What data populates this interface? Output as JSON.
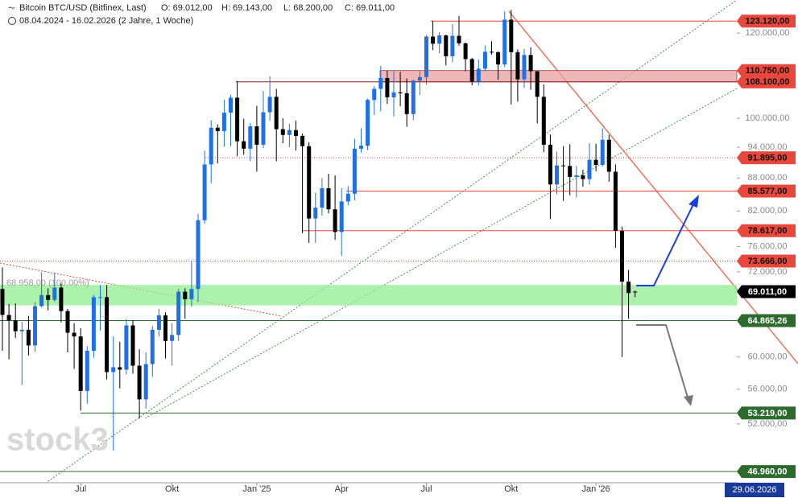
{
  "chart_data": {
    "type": "candlestick",
    "title": "Bitcoin BTC/USD (Bitfinex, Last)",
    "ohlc_info": [
      "O: 69.012,00",
      "H: 69.143,00",
      "L: 68.200,00",
      "C: 69.011,00"
    ],
    "subtitle": "08.04.2024 - 16.02.2026 (2 Jahre, 1 Woche)",
    "watermark": "stock3",
    "cursor_date": "29.06.2026",
    "log_scale": true,
    "up_color": "#1f6fe5",
    "down_color": "#000000",
    "ylim": [
      45850,
      128800
    ],
    "yticks": [
      {
        "value": 120000,
        "label": "120.000,00"
      },
      {
        "value": 100000,
        "label": "100.000,00"
      },
      {
        "value": 94000,
        "label": "94.000,00"
      },
      {
        "value": 88000,
        "label": "88.000,00"
      },
      {
        "value": 82000,
        "label": "82.000,00"
      },
      {
        "value": 76000,
        "label": "76.000,00"
      },
      {
        "value": 72000,
        "label": "72.000,00"
      },
      {
        "value": 60000,
        "label": "60.000,00"
      },
      {
        "value": 56000,
        "label": "56.000,00"
      },
      {
        "value": 52000,
        "label": "52.000,00"
      }
    ],
    "xticks": [
      {
        "value": 12,
        "label": "Jul"
      },
      {
        "value": 26,
        "label": "Okt"
      },
      {
        "value": 39,
        "label": "Jan '25"
      },
      {
        "value": 52,
        "label": "Apr"
      },
      {
        "value": 65,
        "label": "Jul"
      },
      {
        "value": 78,
        "label": "Okt"
      },
      {
        "value": 91,
        "label": "Jan '26"
      }
    ],
    "open": [
      69400,
      65650,
      64900,
      63400,
      63600,
      61500,
      66900,
      68500,
      67800,
      69600,
      66200,
      63200,
      62700,
      55800,
      60800,
      68200,
      68200,
      58100,
      58700,
      58400,
      64200,
      58900,
      54800,
      59100,
      63600,
      65600,
      62100,
      62900,
      69000,
      67900,
      69400,
      80400,
      90600,
      98000,
      97300,
      101200,
      104500,
      95200,
      93700,
      98300,
      94500,
      101300,
      104700,
      97700,
      96500,
      97500,
      96300,
      94200,
      80700,
      82600,
      86100,
      82300,
      78400,
      83700,
      85100,
      93700,
      94300,
      104000,
      106500,
      109000,
      104600,
      105700,
      105500,
      100900,
      108400,
      109200,
      119100,
      117300,
      119400,
      114200,
      119300,
      117400,
      113500,
      108200,
      111200,
      115300,
      115200,
      112200,
      123500,
      115200,
      108700,
      114500,
      110600,
      104700,
      94500,
      86800,
      90400,
      90300,
      88200,
      88500,
      87800,
      91500,
      90500,
      95500,
      89200,
      78600,
      70500,
      69012
    ],
    "high": [
      72700,
      67200,
      67300,
      64700,
      65500,
      67500,
      71900,
      69500,
      71900,
      70200,
      66500,
      64500,
      63800,
      61400,
      68500,
      70000,
      70000,
      62700,
      62000,
      65100,
      64900,
      61000,
      60600,
      64100,
      66500,
      66000,
      64500,
      69400,
      69500,
      73600,
      81500,
      93300,
      99600,
      98700,
      104000,
      105200,
      108300,
      99900,
      99000,
      102700,
      106000,
      109400,
      106500,
      100000,
      98800,
      99500,
      96800,
      95000,
      85300,
      88000,
      88800,
      88500,
      86100,
      86500,
      95700,
      97900,
      104300,
      107100,
      111900,
      110700,
      110600,
      110400,
      108900,
      108600,
      110600,
      119500,
      123200,
      120200,
      119600,
      122300,
      124500,
      117600,
      113800,
      113400,
      116800,
      117900,
      115400,
      125700,
      126100,
      115900,
      116000,
      116400,
      110600,
      107500,
      96600,
      93100,
      94200,
      94600,
      90300,
      89600,
      94800,
      94700,
      97900,
      96500,
      90600,
      79300,
      72300,
      69143
    ],
    "low": [
      60800,
      59700,
      62500,
      56500,
      60200,
      60700,
      66700,
      66300,
      67500,
      64600,
      60600,
      58500,
      53500,
      54300,
      59900,
      63500,
      57200,
      49100,
      56100,
      57800,
      57900,
      52600,
      53700,
      57500,
      62700,
      59800,
      58900,
      62100,
      65100,
      66800,
      67500,
      79800,
      87000,
      90800,
      94100,
      94200,
      92200,
      92500,
      91200,
      89200,
      93800,
      99500,
      91200,
      94800,
      94000,
      93300,
      78200,
      76600,
      76600,
      81200,
      81600,
      77100,
      74500,
      83000,
      83900,
      92900,
      93400,
      100700,
      101500,
      103100,
      100400,
      102600,
      98200,
      99600,
      105100,
      107500,
      115700,
      114900,
      112000,
      112700,
      116800,
      110600,
      107300,
      107300,
      110600,
      114600,
      108600,
      111600,
      103000,
      103600,
      106700,
      106300,
      98900,
      93000,
      80600,
      85000,
      83800,
      84800,
      84400,
      86400,
      86800,
      89300,
      90200,
      87300,
      75800,
      60000,
      65100,
      68200
    ],
    "close": [
      65650,
      64900,
      63400,
      63600,
      61500,
      66900,
      68500,
      67800,
      69600,
      66200,
      63200,
      62700,
      55800,
      60800,
      68200,
      68200,
      58100,
      58700,
      58400,
      64200,
      58900,
      54800,
      59100,
      63600,
      65600,
      62100,
      62900,
      69000,
      67900,
      69400,
      80400,
      90600,
      98000,
      97300,
      101200,
      104500,
      95200,
      93700,
      98300,
      94500,
      101300,
      104700,
      97700,
      96500,
      97500,
      96300,
      94200,
      80700,
      82600,
      86100,
      82300,
      78400,
      83700,
      85100,
      93700,
      94300,
      104000,
      106500,
      109000,
      104600,
      105700,
      105500,
      100900,
      108400,
      109200,
      119100,
      117300,
      119400,
      114200,
      119300,
      117400,
      113500,
      108200,
      111200,
      115300,
      115200,
      112200,
      123500,
      115200,
      108700,
      114500,
      110600,
      104700,
      94500,
      86800,
      90400,
      90300,
      88200,
      88500,
      87800,
      91500,
      90500,
      95500,
      89200,
      78600,
      70500,
      68800,
      69011
    ],
    "zone": {
      "values": [
        67000,
        70000
      ],
      "color": "#90ee90",
      "label": "68.958,00 (100,00%)"
    },
    "resistance_zone": {
      "values": [
        108100,
        110750
      ],
      "color": "#e8a0a0"
    },
    "levels": [
      {
        "value": 123120,
        "label": "123.120,00",
        "color": "#e8473b",
        "style": "solid"
      },
      {
        "value": 110750,
        "label": "110.750,00",
        "color": "#e8473b",
        "style": "none"
      },
      {
        "value": 108100,
        "label": "108.100,00",
        "color": "#8b1a1a",
        "style": "solid"
      },
      {
        "value": 91895,
        "label": "91.895,00",
        "color": "#e8473b",
        "style": "dotted"
      },
      {
        "value": 85577,
        "label": "85.577,00",
        "color": "#e8473b",
        "style": "solid"
      },
      {
        "value": 78617,
        "label": "78.617,00",
        "color": "#e8473b",
        "style": "solid"
      },
      {
        "value": 73666,
        "label": "73.666,00",
        "color": "#e8473b",
        "style": "dotted"
      },
      {
        "value": 69011,
        "label": "69.011,00",
        "color": "#000000",
        "style": "none"
      },
      {
        "value": 64865.26,
        "label": "64.865,26",
        "color": "#2d6a2d",
        "style": "solid"
      },
      {
        "value": 53219,
        "label": "53.219,00",
        "color": "#2d6a2d",
        "style": "solid"
      },
      {
        "value": 46960,
        "label": "46.960,00",
        "color": "#2d6a2d",
        "style": "solid"
      }
    ]
  }
}
